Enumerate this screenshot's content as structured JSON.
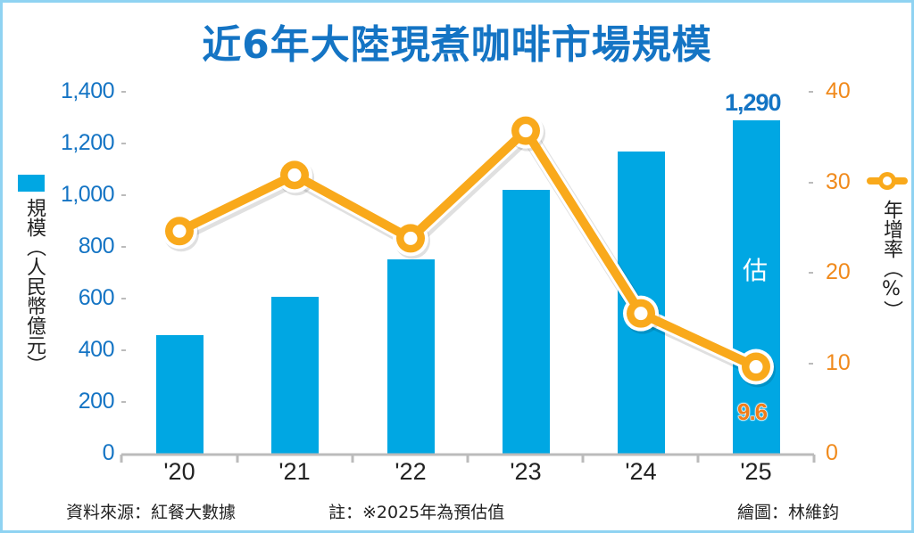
{
  "chart_data": {
    "type": "bar+line",
    "title": "近6年大陸現煮咖啡市場規模",
    "categories": [
      "'20",
      "'21",
      "'22",
      "'23",
      "'24",
      "'25"
    ],
    "series": [
      {
        "name": "規模（人民幣億元）",
        "type": "bar",
        "axis": "left",
        "color": "#00a7e3",
        "values": [
          460,
          607,
          752,
          1020,
          1170,
          1290
        ]
      },
      {
        "name": "年增率（%）",
        "type": "line",
        "axis": "right",
        "color": "#f9a91b",
        "values": [
          24.6,
          30.8,
          23.8,
          35.7,
          15.5,
          9.6
        ]
      }
    ],
    "left_axis": {
      "label": "規模（人民幣億元）",
      "ticks": [
        "0",
        "200",
        "400",
        "600",
        "800",
        "1,000",
        "1,200",
        "1,400"
      ],
      "range": [
        0,
        1400
      ],
      "color": "#1474c4"
    },
    "right_axis": {
      "label": "年增率（%）",
      "ticks": [
        "0",
        "10",
        "20",
        "30",
        "40"
      ],
      "range": [
        0,
        40
      ],
      "color": "#f08a1c"
    },
    "annotations": {
      "last_bar_value": "1,290",
      "last_bar_estimate_mark": "估",
      "last_point_value": "9.6"
    },
    "legend": {
      "bar_label": "規模（人民幣億元）",
      "line_label": "年增率（%）"
    },
    "grid": false
  },
  "title": "近6年大陸現煮咖啡市場規模",
  "left_axis_label": "規模（人民幣億元）",
  "right_axis_label": "年增率（%）",
  "footer": {
    "source": "資料來源：紅餐大數據",
    "note": "註：※2025年為預估值",
    "credit": "繪圖：林維鈞"
  }
}
